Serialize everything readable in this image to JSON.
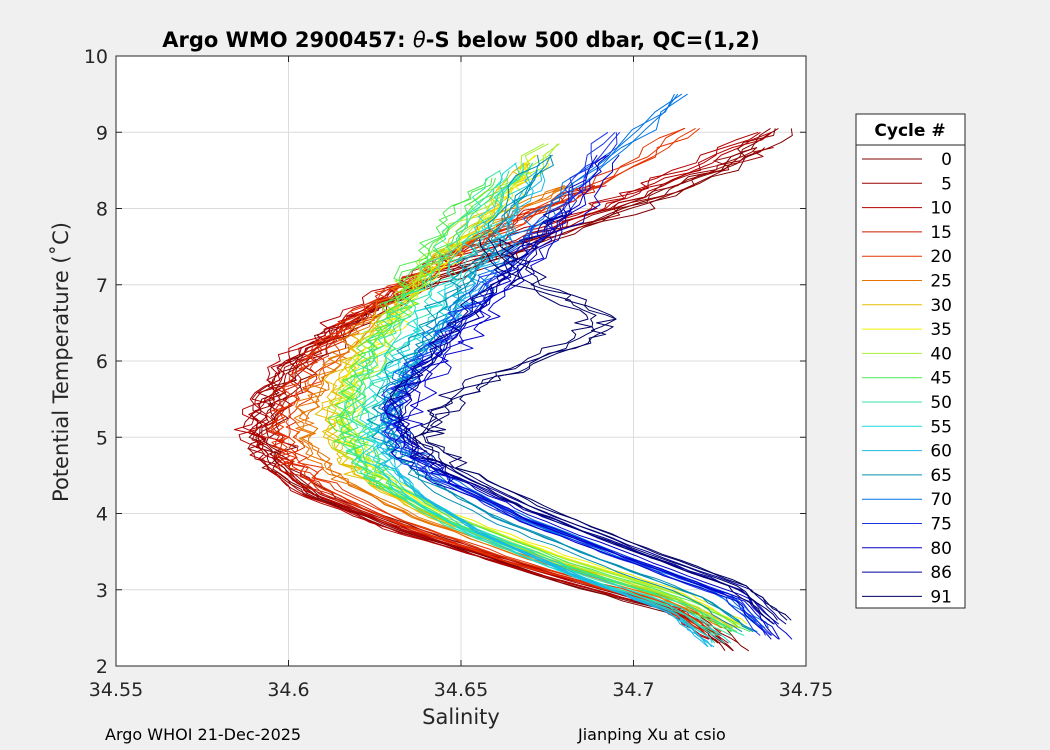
{
  "chart_data": {
    "type": "line",
    "title_prefix": "Argo WMO 2900457: ",
    "title_symbol": "θ",
    "title_suffix": "-S below 500 dbar,  QC=(1,2)",
    "xlabel": "Salinity",
    "ylabel": "Potential Temperature (˚C)",
    "xlim": [
      34.55,
      34.75
    ],
    "ylim": [
      2,
      10
    ],
    "xticks": [
      34.55,
      34.6,
      34.65,
      34.7,
      34.75
    ],
    "xtick_labels": [
      "34.55",
      "34.6",
      "34.65",
      "34.7",
      "34.75"
    ],
    "yticks": [
      2,
      3,
      4,
      5,
      6,
      7,
      8,
      9,
      10
    ],
    "ytick_labels": [
      "2",
      "3",
      "4",
      "5",
      "6",
      "7",
      "8",
      "9",
      "10"
    ],
    "grid": true,
    "legend": {
      "title": "Cycle #",
      "placement": "outside-right",
      "entries": [
        {
          "label": "0",
          "color": "#800000"
        },
        {
          "label": "5",
          "color": "#990000"
        },
        {
          "label": "10",
          "color": "#b30000"
        },
        {
          "label": "15",
          "color": "#cc1a00"
        },
        {
          "label": "20",
          "color": "#e63300"
        },
        {
          "label": "25",
          "color": "#e67300"
        },
        {
          "label": "30",
          "color": "#e6c000"
        },
        {
          "label": "35",
          "color": "#f0f000"
        },
        {
          "label": "40",
          "color": "#a6f033"
        },
        {
          "label": "45",
          "color": "#4dea4d"
        },
        {
          "label": "50",
          "color": "#33e6a6"
        },
        {
          "label": "55",
          "color": "#1ad9d9"
        },
        {
          "label": "60",
          "color": "#19b8e6"
        },
        {
          "label": "65",
          "color": "#008fb3"
        },
        {
          "label": "70",
          "color": "#0073e6"
        },
        {
          "label": "75",
          "color": "#1a33e6"
        },
        {
          "label": "80",
          "color": "#0000cc"
        },
        {
          "label": "86",
          "color": "#000099"
        },
        {
          "label": "91",
          "color": "#000066"
        }
      ]
    },
    "series": [
      {
        "cycle": 0,
        "color": "#800000",
        "salinity": [
          34.729,
          34.72,
          34.68,
          34.64,
          34.61,
          34.598,
          34.594,
          34.596,
          34.605,
          34.62,
          34.64,
          34.67,
          34.7,
          34.725,
          34.742
        ],
        "theta": [
          2.2,
          2.6,
          3.1,
          3.7,
          4.2,
          4.6,
          5.0,
          5.5,
          6.0,
          6.5,
          7.0,
          7.5,
          8.0,
          8.5,
          9.05
        ]
      },
      {
        "cycle": 5,
        "color": "#990000",
        "salinity": [
          34.727,
          34.715,
          34.675,
          34.635,
          34.607,
          34.596,
          34.592,
          34.595,
          34.603,
          34.618,
          34.638,
          34.665,
          34.695,
          34.72,
          34.738
        ],
        "theta": [
          2.3,
          2.7,
          3.2,
          3.75,
          4.25,
          4.65,
          5.05,
          5.5,
          6.0,
          6.5,
          7.0,
          7.5,
          8.0,
          8.45,
          8.8
        ]
      },
      {
        "cycle": 10,
        "color": "#b30000",
        "salinity": [
          34.725,
          34.712,
          34.672,
          34.632,
          34.605,
          34.595,
          34.591,
          34.594,
          34.602,
          34.616,
          34.634,
          34.66,
          34.69,
          34.712,
          34.74
        ],
        "theta": [
          2.35,
          2.75,
          3.25,
          3.8,
          4.3,
          4.7,
          5.1,
          5.5,
          6.0,
          6.5,
          7.0,
          7.5,
          8.0,
          8.4,
          9.0
        ]
      },
      {
        "cycle": 15,
        "color": "#cc1a00",
        "salinity": [
          34.723,
          34.71,
          34.67,
          34.632,
          34.607,
          34.598,
          34.596,
          34.6,
          34.608,
          34.62,
          34.636,
          34.656,
          34.675,
          34.69
        ],
        "theta": [
          2.4,
          2.8,
          3.3,
          3.85,
          4.35,
          4.75,
          5.15,
          5.6,
          6.1,
          6.6,
          7.1,
          7.6,
          8.05,
          8.3
        ]
      },
      {
        "cycle": 20,
        "color": "#e63300",
        "salinity": [
          34.724,
          34.708,
          34.668,
          34.633,
          34.61,
          34.602,
          34.6,
          34.604,
          34.612,
          34.624,
          34.64,
          34.662,
          34.69,
          34.718
        ],
        "theta": [
          2.45,
          2.85,
          3.35,
          3.9,
          4.4,
          4.8,
          5.2,
          5.65,
          6.15,
          6.65,
          7.15,
          7.7,
          8.3,
          9.05
        ]
      },
      {
        "cycle": 25,
        "color": "#e67300",
        "salinity": [
          34.728,
          34.71,
          34.672,
          34.638,
          34.616,
          34.608,
          34.606,
          34.61,
          34.618,
          34.628,
          34.642,
          34.66,
          34.682
        ],
        "theta": [
          2.5,
          2.9,
          3.4,
          3.95,
          4.45,
          4.85,
          5.25,
          5.7,
          6.2,
          6.7,
          7.2,
          7.8,
          8.3
        ]
      },
      {
        "cycle": 30,
        "color": "#e6c000",
        "salinity": [
          34.73,
          34.712,
          34.676,
          34.642,
          34.622,
          34.614,
          34.612,
          34.615,
          34.622,
          34.632,
          34.644,
          34.658,
          34.67
        ],
        "theta": [
          2.5,
          2.9,
          3.4,
          3.95,
          4.45,
          4.85,
          5.3,
          5.75,
          6.25,
          6.75,
          7.3,
          7.9,
          8.6
        ]
      },
      {
        "cycle": 35,
        "color": "#f0f000",
        "salinity": [
          34.731,
          34.714,
          34.678,
          34.645,
          34.626,
          34.618,
          34.616,
          34.619,
          34.626,
          34.634,
          34.645,
          34.658,
          34.672
        ],
        "theta": [
          2.55,
          2.95,
          3.45,
          4.0,
          4.5,
          4.9,
          5.3,
          5.75,
          6.25,
          6.75,
          7.3,
          7.9,
          8.7
        ]
      },
      {
        "cycle": 40,
        "color": "#a6f033",
        "salinity": [
          34.731,
          34.716,
          34.68,
          34.648,
          34.628,
          34.62,
          34.618,
          34.622,
          34.628,
          34.634,
          34.642,
          34.656,
          34.678
        ],
        "theta": [
          2.5,
          2.9,
          3.4,
          3.95,
          4.45,
          4.85,
          5.3,
          5.8,
          6.3,
          6.8,
          7.3,
          7.9,
          8.85
        ]
      },
      {
        "cycle": 45,
        "color": "#4dea4d",
        "salinity": [
          34.73,
          34.714,
          34.678,
          34.647,
          34.627,
          34.619,
          34.617,
          34.62,
          34.626,
          34.632,
          34.638,
          34.648,
          34.66
        ],
        "theta": [
          2.45,
          2.85,
          3.35,
          3.9,
          4.4,
          4.8,
          5.25,
          5.75,
          6.25,
          6.75,
          7.25,
          7.85,
          8.4
        ]
      },
      {
        "cycle": 50,
        "color": "#33e6a6",
        "salinity": [
          34.728,
          34.712,
          34.678,
          34.648,
          34.63,
          34.622,
          34.62,
          34.623,
          34.628,
          34.636,
          34.644,
          34.652,
          34.664
        ],
        "theta": [
          2.4,
          2.8,
          3.3,
          3.85,
          4.35,
          4.75,
          5.2,
          5.7,
          6.2,
          6.7,
          7.2,
          7.8,
          8.5
        ]
      },
      {
        "cycle": 55,
        "color": "#1ad9d9",
        "salinity": [
          34.726,
          34.712,
          34.68,
          34.652,
          34.634,
          34.626,
          34.624,
          34.628,
          34.634,
          34.642,
          34.65,
          34.658,
          34.668
        ],
        "theta": [
          2.3,
          2.75,
          3.25,
          3.8,
          4.3,
          4.7,
          5.15,
          5.65,
          6.15,
          6.65,
          7.15,
          7.75,
          8.6
        ]
      },
      {
        "cycle": 60,
        "color": "#19b8e6",
        "salinity": [
          34.722,
          34.71,
          34.682,
          34.655,
          34.637,
          34.629,
          34.627,
          34.631,
          34.638,
          34.646,
          34.654,
          34.662,
          34.672
        ],
        "theta": [
          2.25,
          2.7,
          3.2,
          3.75,
          4.25,
          4.65,
          5.1,
          5.6,
          6.1,
          6.6,
          7.1,
          7.7,
          8.5
        ]
      },
      {
        "cycle": 65,
        "color": "#008fb3",
        "salinity": [
          34.735,
          34.72,
          34.69,
          34.66,
          34.64,
          34.631,
          34.629,
          34.633,
          34.64,
          34.648,
          34.656,
          34.664,
          34.676
        ],
        "theta": [
          2.45,
          2.9,
          3.4,
          3.95,
          4.45,
          4.85,
          5.3,
          5.8,
          6.3,
          6.8,
          7.3,
          7.9,
          8.7
        ]
      },
      {
        "cycle": 70,
        "color": "#0073e6",
        "salinity": [
          34.738,
          34.726,
          34.696,
          34.665,
          34.644,
          34.633,
          34.63,
          34.635,
          34.644,
          34.654,
          34.664,
          34.678,
          34.714
        ],
        "theta": [
          2.5,
          2.95,
          3.45,
          4.0,
          4.5,
          4.9,
          5.35,
          5.85,
          6.35,
          6.85,
          7.4,
          8.1,
          9.5
        ]
      },
      {
        "cycle": 75,
        "color": "#1a33e6",
        "salinity": [
          34.74,
          34.73,
          34.7,
          34.668,
          34.646,
          34.634,
          34.631,
          34.636,
          34.646,
          34.656,
          34.668,
          34.682,
          34.696
        ],
        "theta": [
          2.4,
          2.9,
          3.4,
          3.95,
          4.45,
          4.85,
          5.3,
          5.8,
          6.3,
          6.8,
          7.4,
          8.1,
          9.0
        ]
      },
      {
        "cycle": 80,
        "color": "#0000cc",
        "salinity": [
          34.742,
          34.732,
          34.702,
          34.67,
          34.647,
          34.635,
          34.632,
          34.638,
          34.648,
          34.658,
          34.67,
          34.684,
          34.692
        ],
        "theta": [
          2.35,
          2.85,
          3.35,
          3.9,
          4.4,
          4.8,
          5.25,
          5.75,
          6.25,
          6.75,
          7.35,
          8.05,
          8.7
        ]
      },
      {
        "cycle": 86,
        "color": "#000099",
        "salinity": [
          34.744,
          34.734,
          34.704,
          34.672,
          34.648,
          34.636,
          34.633,
          34.64,
          34.65,
          34.66,
          34.672,
          34.682
        ],
        "theta": [
          2.55,
          3.0,
          3.5,
          4.05,
          4.55,
          4.95,
          5.4,
          5.9,
          6.4,
          6.9,
          7.5,
          8.0
        ]
      },
      {
        "cycle": 91,
        "color": "#000066",
        "salinity": [
          34.742,
          34.73,
          34.7,
          34.67,
          34.648,
          34.638,
          34.642,
          34.65,
          34.664,
          34.686,
          34.69,
          34.67,
          34.658
        ],
        "theta": [
          2.6,
          3.05,
          3.55,
          4.1,
          4.6,
          5.0,
          5.3,
          5.6,
          5.9,
          6.3,
          6.6,
          7.0,
          7.6
        ]
      }
    ]
  },
  "footer": {
    "left": "Argo WHOI 21-Dec-2025",
    "right": "Jianping Xu at csio"
  }
}
